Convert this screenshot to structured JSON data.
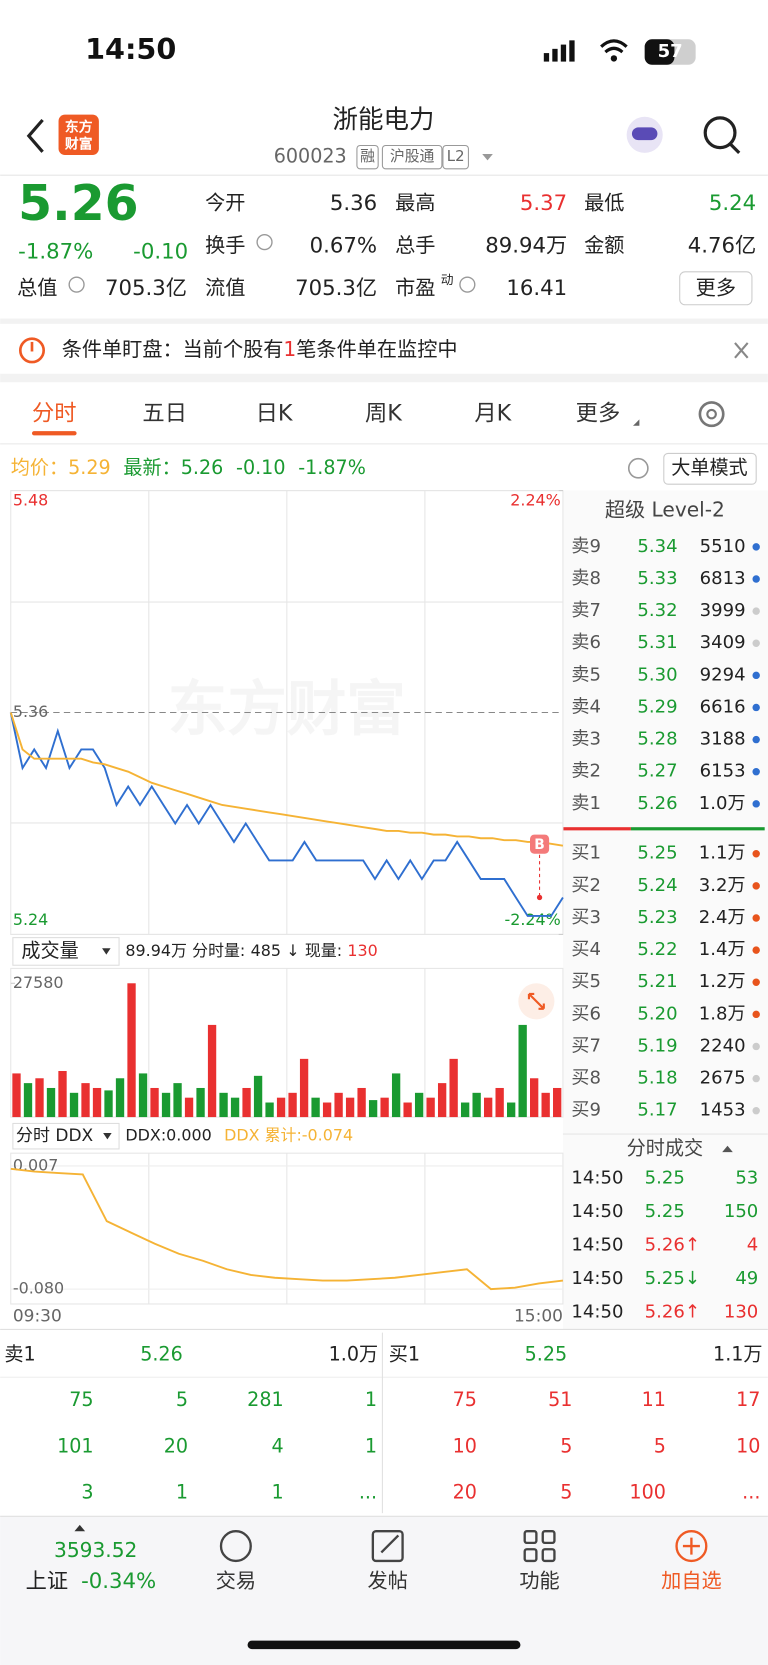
{
  "status_bar": {
    "time": "14:50",
    "battery": "57"
  },
  "header": {
    "logo": [
      "东方",
      "财富"
    ],
    "title": "浙能电力",
    "code": "600023",
    "tags": [
      "融",
      "沪股通",
      "L2"
    ]
  },
  "quote": {
    "price": "5.26",
    "change_pct": "-1.87%",
    "change": "-0.10",
    "fields": [
      {
        "label": "今开",
        "value": "5.36",
        "color": "#222222"
      },
      {
        "label": "最高",
        "value": "5.37",
        "color": "#e93030"
      },
      {
        "label": "最低",
        "value": "5.24",
        "color": "#1a9a31"
      },
      {
        "label": "换手",
        "value": "0.67%",
        "color": "#222222"
      },
      {
        "label": "总手",
        "value": "89.94万",
        "color": "#222222"
      },
      {
        "label": "金额",
        "value": "4.76亿",
        "color": "#222222"
      },
      {
        "label": "总值",
        "value": "705.3亿",
        "color": "#222222"
      },
      {
        "label": "流值",
        "value": "705.3亿",
        "color": "#222222"
      },
      {
        "label": "市盈",
        "sup": "动",
        "value": "16.41",
        "color": "#222222"
      }
    ],
    "more": "更多"
  },
  "notice": {
    "prefix": "条件单盯盘：当前个股有",
    "count": "1",
    "suffix": "笔条件单在监控中"
  },
  "tabs": [
    "分时",
    "五日",
    "日K",
    "周K",
    "月K",
    "更多"
  ],
  "chart_info": {
    "avg_label": "均价：",
    "avg": "5.29",
    "last_label": "最新：",
    "last": "5.26",
    "change": "-0.10",
    "change_pct": "-1.87%",
    "mode": "大单模式"
  },
  "watermark": "东方财富",
  "chart_data": [
    {
      "type": "line",
      "ylim": [
        5.24,
        5.48
      ],
      "yticks": [
        5.48,
        5.36,
        5.24
      ],
      "y2lim": [
        -2.24,
        2.24
      ],
      "y2ticks": [
        {
          "value": 2.24,
          "label": "2.24%"
        },
        {
          "value": -2.24,
          "label": "-2.24%"
        }
      ],
      "marker": "B",
      "series": [
        {
          "color": "#2f6fd0",
          "values": [
            5.36,
            5.33,
            5.34,
            5.33,
            5.35,
            5.33,
            5.34,
            5.34,
            5.33,
            5.31,
            5.32,
            5.31,
            5.32,
            5.31,
            5.3,
            5.31,
            5.3,
            5.31,
            5.3,
            5.29,
            5.3,
            5.29,
            5.28,
            5.28,
            5.28,
            5.29,
            5.28,
            5.28,
            5.28,
            5.28,
            5.28,
            5.27,
            5.28,
            5.27,
            5.28,
            5.27,
            5.28,
            5.28,
            5.29,
            5.28,
            5.27,
            5.27,
            5.27,
            5.26,
            5.25,
            5.25,
            5.25,
            5.26
          ]
        },
        {
          "color": "#f5b335",
          "values": [
            5.36,
            5.34,
            5.335,
            5.335,
            5.335,
            5.335,
            5.335,
            5.333,
            5.332,
            5.33,
            5.328,
            5.325,
            5.322,
            5.32,
            5.318,
            5.316,
            5.314,
            5.312,
            5.31,
            5.309,
            5.308,
            5.307,
            5.306,
            5.305,
            5.304,
            5.303,
            5.302,
            5.301,
            5.3,
            5.299,
            5.298,
            5.297,
            5.296,
            5.296,
            5.295,
            5.295,
            5.294,
            5.294,
            5.293,
            5.293,
            5.292,
            5.292,
            5.291,
            5.291,
            5.29,
            5.29,
            5.289,
            5.288
          ]
        }
      ]
    },
    {
      "type": "bar",
      "title": "成交量",
      "total": "89.94万",
      "period_label": "分时量:",
      "period": "485",
      "arrow": "↓",
      "now_label": "现量:",
      "now": "130",
      "ylim": [
        0,
        27580
      ],
      "yticks": [
        27580
      ],
      "up_color": "#e93030",
      "down_color": "#1a9a31",
      "values": [
        9000,
        7000,
        8000,
        6000,
        9500,
        5000,
        7000,
        6000,
        5500,
        8000,
        27580,
        9000,
        6000,
        5000,
        7000,
        4000,
        6000,
        19000,
        5000,
        4000,
        6000,
        8500,
        3000,
        4000,
        5000,
        12000,
        4000,
        3000,
        5000,
        4000,
        6000,
        3500,
        4000,
        9000,
        3000,
        5000,
        4000,
        7000,
        12000,
        3000,
        5000,
        4000,
        6000,
        3000,
        19000,
        8000,
        5000,
        6000
      ]
    },
    {
      "type": "line",
      "title": "分时 DDX",
      "ddx_label": "DDX:0.000",
      "cum_label": "DDX 累计:-0.074",
      "ylim": [
        -0.08,
        0.007
      ],
      "yticks": [
        0.007,
        {
          "value": -0.08,
          "label": "-0.080"
        }
      ],
      "categories": [
        "09:30",
        null,
        null,
        null,
        null,
        null,
        null,
        null,
        null,
        null,
        null,
        null,
        null,
        null,
        null,
        null,
        null,
        null,
        null,
        null,
        null,
        null,
        null,
        "15:00"
      ],
      "color": "#f5b335",
      "values": [
        0.005,
        0.003,
        0.002,
        0.001,
        -0.032,
        -0.04,
        -0.048,
        -0.055,
        -0.06,
        -0.066,
        -0.07,
        -0.072,
        -0.073,
        -0.074,
        -0.074,
        -0.073,
        -0.072,
        -0.07,
        -0.068,
        -0.066,
        -0.08,
        -0.079,
        -0.076,
        -0.074
      ]
    }
  ],
  "level2": {
    "title": "超级 Level-2",
    "sell": [
      {
        "label": "卖9",
        "price": "5.34",
        "volume": "5510",
        "dot": "#2f6fd0"
      },
      {
        "label": "卖8",
        "price": "5.33",
        "volume": "6813",
        "dot": "#2f6fd0"
      },
      {
        "label": "卖7",
        "price": "5.32",
        "volume": "3999",
        "dot": "#cccccc"
      },
      {
        "label": "卖6",
        "price": "5.31",
        "volume": "3409",
        "dot": "#cccccc"
      },
      {
        "label": "卖5",
        "price": "5.30",
        "volume": "9294",
        "dot": "#2f6fd0"
      },
      {
        "label": "卖4",
        "price": "5.29",
        "volume": "6616",
        "dot": "#2f6fd0"
      },
      {
        "label": "卖3",
        "price": "5.28",
        "volume": "3188",
        "dot": "#2f6fd0"
      },
      {
        "label": "卖2",
        "price": "5.27",
        "volume": "6153",
        "dot": "#2f6fd0"
      },
      {
        "label": "卖1",
        "price": "5.26",
        "volume": "1.0万",
        "dot": "#2f6fd0"
      }
    ],
    "buy": [
      {
        "label": "买1",
        "price": "5.25",
        "volume": "1.1万",
        "dot": "#e8541c"
      },
      {
        "label": "买2",
        "price": "5.24",
        "volume": "3.2万",
        "dot": "#e8541c"
      },
      {
        "label": "买3",
        "price": "5.23",
        "volume": "2.4万",
        "dot": "#e8541c"
      },
      {
        "label": "买4",
        "price": "5.22",
        "volume": "1.4万",
        "dot": "#e8541c"
      },
      {
        "label": "买5",
        "price": "5.21",
        "volume": "1.2万",
        "dot": "#e8541c"
      },
      {
        "label": "买6",
        "price": "5.20",
        "volume": "1.8万",
        "dot": "#e8541c"
      },
      {
        "label": "买7",
        "price": "5.19",
        "volume": "2240",
        "dot": "#cccccc"
      },
      {
        "label": "买8",
        "price": "5.18",
        "volume": "2675",
        "dot": "#cccccc"
      },
      {
        "label": "买9",
        "price": "5.17",
        "volume": "1453",
        "dot": "#cccccc"
      }
    ]
  },
  "trades": {
    "title": "分时成交",
    "rows": [
      {
        "time": "14:50",
        "price": "5.25",
        "volume": "53",
        "price_color": "#1a9a31",
        "volume_color": "#1a9a31"
      },
      {
        "time": "14:50",
        "price": "5.25",
        "volume": "150",
        "price_color": "#1a9a31",
        "volume_color": "#1a9a31"
      },
      {
        "time": "14:50",
        "price": "5.26↑",
        "volume": "4",
        "price_color": "#e93030",
        "volume_color": "#e93030"
      },
      {
        "time": "14:50",
        "price": "5.25↓",
        "volume": "49",
        "price_color": "#1a9a31",
        "volume_color": "#1a9a31"
      },
      {
        "time": "14:50",
        "price": "5.26↑",
        "volume": "130",
        "price_color": "#e93030",
        "volume_color": "#e93030"
      }
    ]
  },
  "queue": {
    "sell": {
      "label": "卖1",
      "price": "5.26",
      "volume": "1.0万",
      "rows": [
        [
          "75",
          "5",
          "281",
          "1"
        ],
        [
          "101",
          "20",
          "4",
          "1"
        ],
        [
          "3",
          "1",
          "1",
          "..."
        ]
      ]
    },
    "buy": {
      "label": "买1",
      "price": "5.25",
      "volume": "1.1万",
      "rows": [
        [
          "75",
          "51",
          "11",
          "17"
        ],
        [
          "10",
          "5",
          "5",
          "10"
        ],
        [
          "20",
          "5",
          "100",
          "..."
        ]
      ]
    }
  },
  "footer": {
    "index": "3593.52",
    "index_name": "上证",
    "index_change": "-0.34%",
    "nav": [
      "交易",
      "发帖",
      "功能",
      "加自选"
    ]
  }
}
